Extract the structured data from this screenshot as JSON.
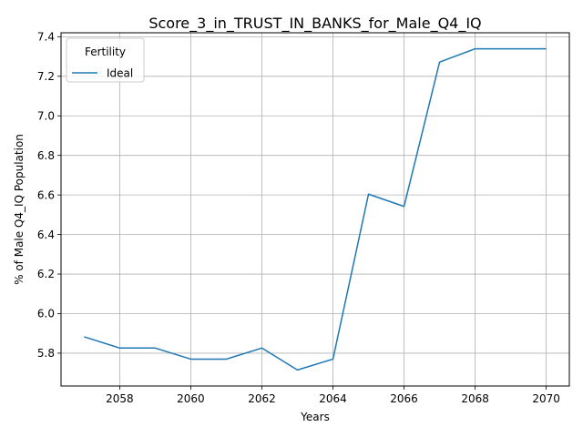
{
  "chart_data": {
    "type": "line",
    "title": "Score_3_in_TRUST_IN_BANKS_for_Male_Q4_IQ",
    "xlabel": "Years",
    "ylabel": "% of Male Q4_IQ Population",
    "xlim": [
      2056.35,
      2070.65
    ],
    "ylim": [
      5.634,
      7.42
    ],
    "x_ticks": [
      2058,
      2060,
      2062,
      2064,
      2066,
      2068,
      2070
    ],
    "y_ticks": [
      5.8,
      6.0,
      6.2,
      6.4,
      6.6,
      6.8,
      7.0,
      7.2,
      7.4
    ],
    "grid": true,
    "legend": {
      "title": "Fertility",
      "position": "top-left"
    },
    "x": [
      2057,
      2058,
      2059,
      2060,
      2061,
      2062,
      2063,
      2064,
      2065,
      2066,
      2067,
      2068,
      2069,
      2070
    ],
    "series": [
      {
        "name": "Ideal",
        "color": "#1f77b4",
        "values": [
          5.883,
          5.826,
          5.826,
          5.77,
          5.77,
          5.826,
          5.715,
          5.77,
          6.604,
          6.542,
          7.272,
          7.339,
          7.339,
          7.339
        ]
      }
    ]
  }
}
